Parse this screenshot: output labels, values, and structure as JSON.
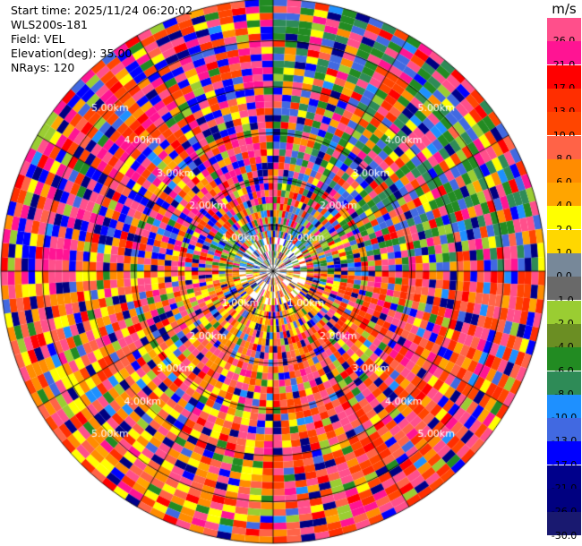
{
  "info": {
    "start_time": "Start time: 2025/11/24 06:20:02",
    "instrument": "WLS200s-181",
    "field": "Field: VEL",
    "elevation": "Elevation(deg): 35.00",
    "nrays": "NRays: 120"
  },
  "colorbar": {
    "unit": "m/s",
    "entries": [
      {
        "label": "26.0",
        "color": "#ff4f8b"
      },
      {
        "label": "21.0",
        "color": "#ff1493"
      },
      {
        "label": "17.0",
        "color": "#ff0000"
      },
      {
        "label": "13.0",
        "color": "#ff2e00"
      },
      {
        "label": "10.0",
        "color": "#ff4500"
      },
      {
        "label": "8.0",
        "color": "#ff6347"
      },
      {
        "label": "6.0",
        "color": "#ff8c00"
      },
      {
        "label": "4.0",
        "color": "#ffa500"
      },
      {
        "label": "2.0",
        "color": "#ffff00"
      },
      {
        "label": "1.0",
        "color": "#ffd700"
      },
      {
        "label": "0.0",
        "color": "#778899"
      },
      {
        "label": "-1.0",
        "color": "#696969"
      },
      {
        "label": "-2.0",
        "color": "#9acd32"
      },
      {
        "label": "-4.0",
        "color": "#6b8e23"
      },
      {
        "label": "-6.0",
        "color": "#228b22"
      },
      {
        "label": "-8.0",
        "color": "#2e8b57"
      },
      {
        "label": "-10.0",
        "color": "#1e90ff"
      },
      {
        "label": "-13.0",
        "color": "#4169e1"
      },
      {
        "label": "-17.0",
        "color": "#0000ff"
      },
      {
        "label": "-21.0",
        "color": "#00008b"
      },
      {
        "label": "-26.0",
        "color": "#000080"
      },
      {
        "label": "-30.0",
        "color": "#191970"
      }
    ]
  },
  "chart_data": {
    "type": "heatmap",
    "projection": "polar",
    "field": "VEL",
    "units": "m/s",
    "n_rays": 120,
    "range_rings_km": [
      1,
      2,
      3,
      4,
      5
    ],
    "ring_labels": [
      "1.00km",
      "2.00km",
      "3.00km",
      "4.00km",
      "5.00km"
    ],
    "max_range_km": 5.9,
    "gate_count": 40,
    "dominant_by_sector": [
      {
        "sector": "north-west",
        "values_ms": [
          10,
          26,
          -17,
          21
        ]
      },
      {
        "sector": "north-east",
        "values_ms": [
          -8,
          -6,
          26,
          -13
        ]
      },
      {
        "sector": "south-west",
        "values_ms": [
          2,
          6,
          8,
          26
        ]
      },
      {
        "sector": "south-east",
        "values_ms": [
          8,
          10,
          13,
          26
        ]
      },
      {
        "sector": "near-center-north",
        "values_ms": [
          -10,
          -6,
          -2,
          0
        ]
      },
      {
        "sector": "near-center-south",
        "values_ms": [
          2,
          4,
          6,
          8
        ]
      }
    ]
  }
}
